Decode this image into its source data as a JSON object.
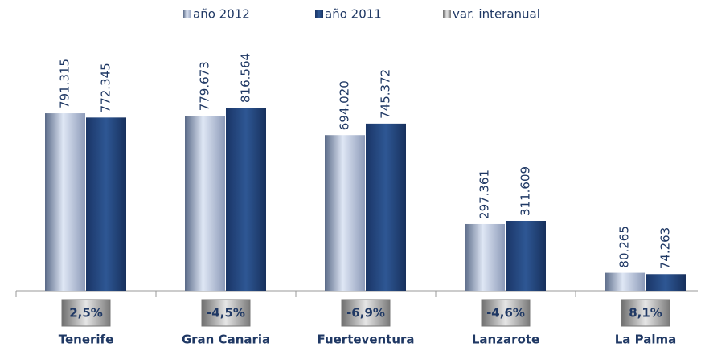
{
  "chart_data": {
    "type": "bar",
    "categories": [
      "Tenerife",
      "Gran Canaria",
      "Fuerteventura",
      "Lanzarote",
      "La Palma"
    ],
    "series": [
      {
        "name": "año 2012",
        "color": "#b8c8e4",
        "values": [
          791315,
          779673,
          694020,
          297361,
          80265
        ],
        "value_labels": [
          "791.315",
          "779.673",
          "694.020",
          "297.361",
          "80.265"
        ]
      },
      {
        "name": "año 2011",
        "color": "#1f3f73",
        "values": [
          772345,
          816564,
          745372,
          311609,
          74263
        ],
        "value_labels": [
          "772.345",
          "816.564",
          "745.372",
          "311.609",
          "74.263"
        ]
      },
      {
        "name": "var. interanual",
        "color": "#a6a6a6",
        "values": [
          2.5,
          -4.5,
          -6.9,
          -4.6,
          8.1
        ],
        "value_labels": [
          "2,5%",
          "-4,5%",
          "-6,9%",
          "-4,6%",
          "8,1%"
        ]
      }
    ]
  }
}
